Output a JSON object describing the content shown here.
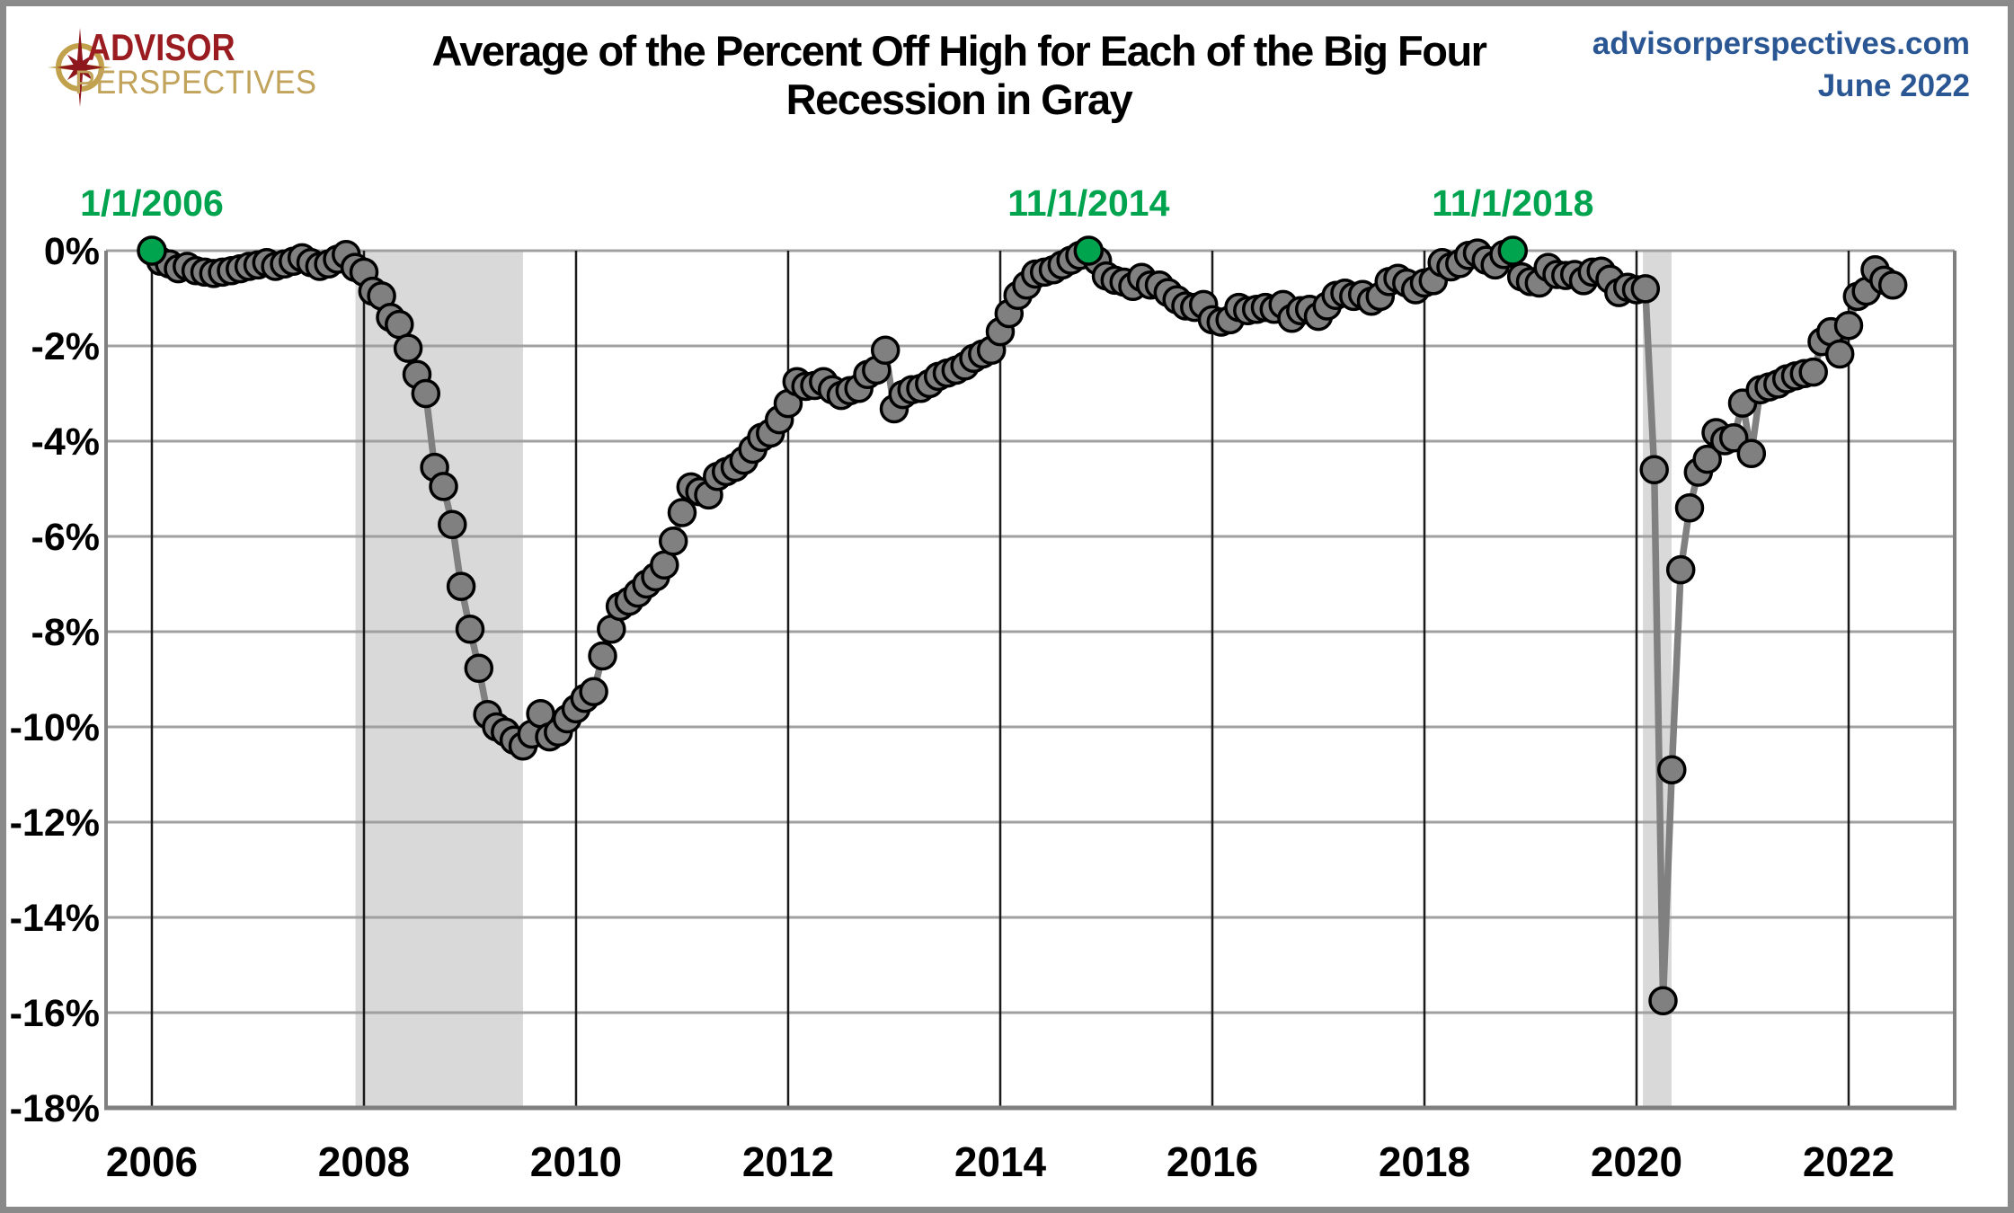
{
  "page": {
    "frame_color": "#8a8a8a",
    "background": "#ffffff"
  },
  "header": {
    "logo": {
      "icon": "compass-star-icon",
      "word1": "ADVISOR",
      "word2": "PERSPECTIVES",
      "word1_color": "#9a1b20",
      "word2_color": "#c2a35b",
      "ring_color": "#c2a14d",
      "star_color": "#8e161d"
    },
    "title_line1": "Average of the Percent Off High for Each of the Big Four",
    "title_line2": "Recession in Gray",
    "site": "advisorperspectives.com",
    "date": "June 2022",
    "site_color": "#2a5794"
  },
  "chart_data": {
    "type": "line",
    "title": "Average of the Percent Off High for Each of the Big Four",
    "subtitle": "Recession in Gray",
    "x_unit": "month",
    "x_start_year": 2006,
    "x_start_month": 1,
    "xlim": [
      2005.568,
      2023.0
    ],
    "ylim": [
      0,
      -18
    ],
    "x_ticks": [
      2006,
      2008,
      2010,
      2012,
      2014,
      2016,
      2018,
      2020,
      2022
    ],
    "y_ticks": [
      0,
      -2,
      -4,
      -6,
      -8,
      -10,
      -12,
      -14,
      -16,
      -18
    ],
    "y_tick_labels": [
      "0%",
      "-2%",
      "-4%",
      "-6%",
      "-8%",
      "-10%",
      "-12%",
      "-14%",
      "-16%",
      "-18%"
    ],
    "grid": {
      "h_color": "#a0a0a0",
      "v_color": "#1a1a1a",
      "border_color": "#808080"
    },
    "recession_color": "#d9d9d9",
    "recessions": [
      {
        "from": 2007.92,
        "to": 2009.5
      },
      {
        "from": 2020.06,
        "to": 2020.33
      }
    ],
    "series": [
      {
        "name": "Average of the Big Four Percent Off High",
        "line_color": "#808080",
        "point_fill": "#808080",
        "point_stroke": "#000000",
        "values": [
          0.0,
          -0.22,
          -0.28,
          -0.38,
          -0.33,
          -0.42,
          -0.45,
          -0.48,
          -0.45,
          -0.42,
          -0.38,
          -0.33,
          -0.3,
          -0.25,
          -0.33,
          -0.28,
          -0.22,
          -0.15,
          -0.25,
          -0.33,
          -0.28,
          -0.18,
          -0.08,
          -0.35,
          -0.45,
          -0.85,
          -0.95,
          -1.4,
          -1.55,
          -2.05,
          -2.6,
          -3.0,
          -4.55,
          -4.95,
          -5.75,
          -7.05,
          -7.95,
          -8.77,
          -9.74,
          -10.0,
          -10.11,
          -10.28,
          -10.4,
          -10.15,
          -9.72,
          -10.21,
          -10.11,
          -9.83,
          -9.62,
          -9.4,
          -9.26,
          -8.51,
          -7.95,
          -7.47,
          -7.36,
          -7.19,
          -7.0,
          -6.85,
          -6.6,
          -6.1,
          -5.5,
          -4.96,
          -5.06,
          -5.13,
          -4.74,
          -4.64,
          -4.55,
          -4.4,
          -4.17,
          -3.92,
          -3.83,
          -3.55,
          -3.21,
          -2.75,
          -2.85,
          -2.83,
          -2.75,
          -2.92,
          -3.04,
          -2.94,
          -2.89,
          -2.6,
          -2.51,
          -2.09,
          -3.32,
          -3.02,
          -2.92,
          -2.89,
          -2.79,
          -2.64,
          -2.57,
          -2.51,
          -2.42,
          -2.26,
          -2.17,
          -2.09,
          -1.7,
          -1.32,
          -0.94,
          -0.72,
          -0.49,
          -0.45,
          -0.4,
          -0.3,
          -0.2,
          -0.1,
          0.0,
          -0.21,
          -0.53,
          -0.62,
          -0.66,
          -0.75,
          -0.56,
          -0.72,
          -0.72,
          -0.88,
          -1.03,
          -1.16,
          -1.19,
          -1.13,
          -1.45,
          -1.5,
          -1.45,
          -1.19,
          -1.26,
          -1.23,
          -1.19,
          -1.23,
          -1.13,
          -1.42,
          -1.26,
          -1.23,
          -1.38,
          -1.16,
          -0.94,
          -0.89,
          -0.96,
          -0.92,
          -1.06,
          -0.96,
          -0.65,
          -0.58,
          -0.68,
          -0.82,
          -0.68,
          -0.63,
          -0.25,
          -0.34,
          -0.27,
          -0.1,
          -0.05,
          -0.2,
          -0.3,
          -0.08,
          0.0,
          -0.55,
          -0.65,
          -0.68,
          -0.35,
          -0.5,
          -0.52,
          -0.5,
          -0.63,
          -0.45,
          -0.43,
          -0.6,
          -0.88,
          -0.77,
          -0.82,
          -0.8,
          -4.6,
          -15.75,
          -10.9,
          -6.7,
          -5.4,
          -4.65,
          -4.38,
          -3.82,
          -3.99,
          -3.93,
          -3.2,
          -4.26,
          -2.92,
          -2.86,
          -2.8,
          -2.69,
          -2.63,
          -2.58,
          -2.55,
          -1.91,
          -1.7,
          -2.17,
          -1.57,
          -0.96,
          -0.85,
          -0.4,
          -0.62,
          -0.72
        ]
      }
    ],
    "markers": [
      {
        "index": 0,
        "label": "1/1/2006"
      },
      {
        "index": 106,
        "label": "11/1/2014"
      },
      {
        "index": 154,
        "label": "11/1/2018"
      }
    ],
    "marker_color": "#00a44f"
  }
}
